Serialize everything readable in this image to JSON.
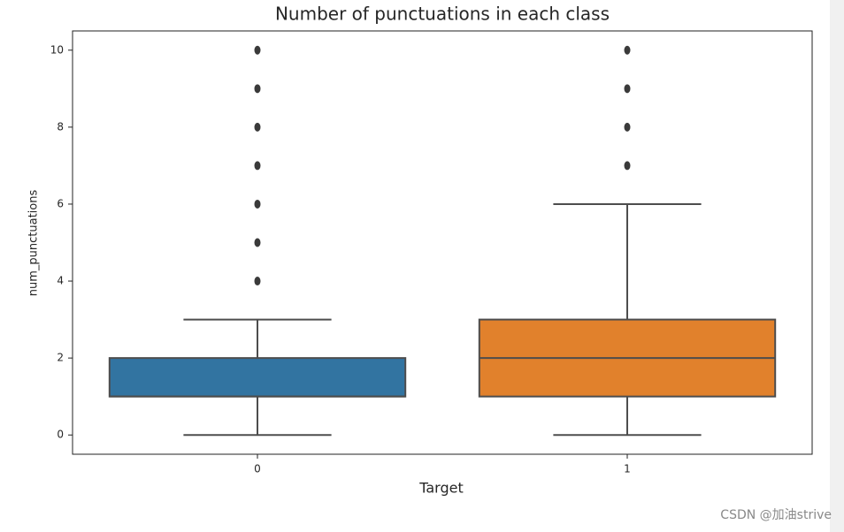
{
  "chart_data": {
    "type": "box",
    "title": "Number of punctuations in each class",
    "x_label": "Target",
    "y_label": "num_punctuations",
    "categories": [
      "0",
      "1"
    ],
    "boxes": [
      {
        "color": "#3274a1",
        "min": 0,
        "q1": 1,
        "median": 1,
        "q3": 2,
        "max": 3,
        "outliers": [
          4,
          5,
          6,
          7,
          8,
          9,
          10
        ]
      },
      {
        "color": "#e1812c",
        "min": 0,
        "q1": 1,
        "median": 2,
        "q3": 3,
        "max": 6,
        "outliers": [
          7,
          8,
          9,
          10
        ]
      }
    ],
    "ylim": [
      -0.5,
      10.5
    ],
    "yticks": [
      0,
      2,
      4,
      6,
      8,
      10
    ],
    "watermark": "CSDN @加油strive"
  }
}
